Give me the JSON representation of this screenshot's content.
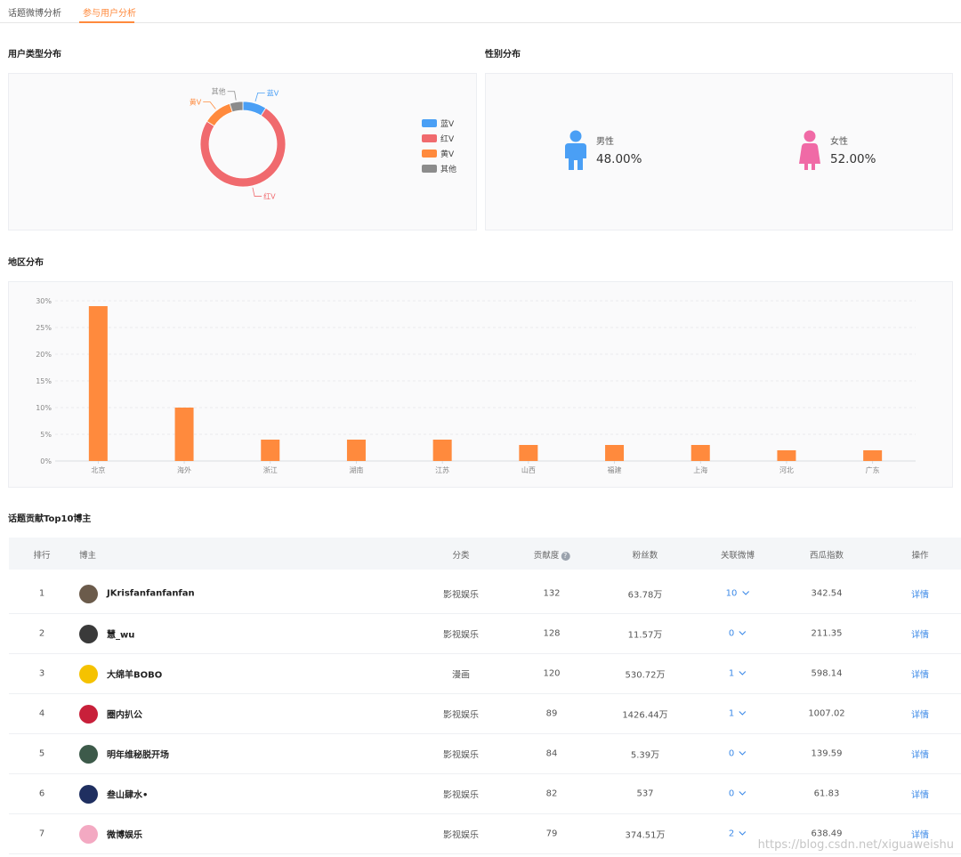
{
  "tabs": [
    {
      "label": "话题微博分析",
      "active": false
    },
    {
      "label": "参与用户分析",
      "active": true
    }
  ],
  "user_type": {
    "title": "用户类型分布",
    "chart_data": {
      "type": "pie",
      "categories": [
        "蓝V",
        "红V",
        "黄V",
        "其他"
      ],
      "values": [
        9,
        75,
        11,
        5
      ],
      "colors": [
        "#4a9ff5",
        "#f06a6e",
        "#ff8a3d",
        "#8c8c8c"
      ],
      "legend_position": "right"
    }
  },
  "gender": {
    "title": "性别分布",
    "male": {
      "label": "男性",
      "value": "48.00%",
      "color": "#4a9ff5"
    },
    "female": {
      "label": "女性",
      "value": "52.00%",
      "color": "#f06aa6"
    }
  },
  "region": {
    "title": "地区分布",
    "chart_data": {
      "type": "bar",
      "categories": [
        "北京",
        "海外",
        "浙江",
        "湖南",
        "江苏",
        "山西",
        "福建",
        "上海",
        "河北",
        "广东"
      ],
      "values": [
        29,
        10,
        4,
        4,
        4,
        3,
        3,
        3,
        2,
        2
      ],
      "ylim": [
        0,
        30
      ],
      "y_ticks": [
        "0%",
        "5%",
        "10%",
        "15%",
        "20%",
        "25%",
        "30%"
      ],
      "color": "#ff8a3d",
      "grid": true
    }
  },
  "top10": {
    "title": "话题贡献Top10博主",
    "columns": [
      "排行",
      "博主",
      "分类",
      "贡献度",
      "粉丝数",
      "关联微博",
      "西瓜指数",
      "操作"
    ],
    "help_icon": "?",
    "rows": [
      {
        "rank": "1",
        "name": "JKrisfanfanfanfan",
        "category": "影视娱乐",
        "contribution": "132",
        "fans": "63.78万",
        "related": "10",
        "index": "342.54",
        "action": "详情",
        "avatar_color": "#6b5b4b"
      },
      {
        "rank": "2",
        "name": "慧_wu",
        "category": "影视娱乐",
        "contribution": "128",
        "fans": "11.57万",
        "related": "0",
        "index": "211.35",
        "action": "详情",
        "avatar_color": "#3a3a3a"
      },
      {
        "rank": "3",
        "name": "大绵羊BOBO",
        "category": "漫画",
        "contribution": "120",
        "fans": "530.72万",
        "related": "1",
        "index": "598.14",
        "action": "详情",
        "avatar_color": "#f5c200"
      },
      {
        "rank": "4",
        "name": "圈内扒公",
        "category": "影视娱乐",
        "contribution": "89",
        "fans": "1426.44万",
        "related": "1",
        "index": "1007.02",
        "action": "详情",
        "avatar_color": "#c8203a"
      },
      {
        "rank": "5",
        "name": "明年维秘脱开场",
        "category": "影视娱乐",
        "contribution": "84",
        "fans": "5.39万",
        "related": "0",
        "index": "139.59",
        "action": "详情",
        "avatar_color": "#3d5a4a"
      },
      {
        "rank": "6",
        "name": "叁山肆水•",
        "category": "影视娱乐",
        "contribution": "82",
        "fans": "537",
        "related": "0",
        "index": "61.83",
        "action": "详情",
        "avatar_color": "#1f2f60"
      },
      {
        "rank": "7",
        "name": "微博娱乐",
        "category": "影视娱乐",
        "contribution": "79",
        "fans": "374.51万",
        "related": "2",
        "index": "638.49",
        "action": "详情",
        "avatar_color": "#f3a9c2"
      }
    ]
  },
  "watermark": "https://blog.csdn.net/xiguaweishu"
}
